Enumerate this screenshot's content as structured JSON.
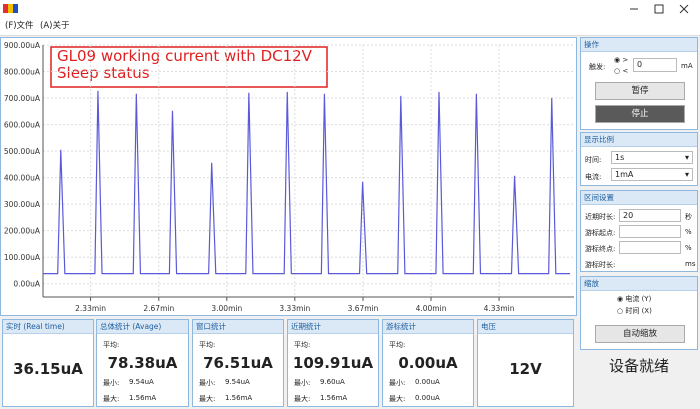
{
  "menu": [
    "(F)文件",
    "(A)关于"
  ],
  "chart_data": {
    "type": "line",
    "annotation": [
      "GL09 working current with DC12V",
      "Sleep status"
    ],
    "x": [
      2.1,
      2.172,
      2.187,
      2.207,
      2.354,
      2.369,
      2.389,
      2.542,
      2.557,
      2.577,
      2.719,
      2.734,
      2.754,
      2.911,
      2.926,
      2.946,
      3.093,
      3.108,
      3.128,
      3.281,
      3.296,
      3.316,
      3.463,
      3.478,
      3.498,
      3.65,
      3.665,
      3.685,
      3.837,
      3.852,
      3.872,
      4.024,
      4.039,
      4.059,
      4.207,
      4.222,
      4.242,
      4.394,
      4.409,
      4.429,
      4.576,
      4.591,
      4.611,
      4.68
    ],
    "series": [
      {
        "color": "#5a5ad8",
        "values": [
          38,
          38,
          505,
          38,
          38,
          727,
          38,
          38,
          716,
          38,
          38,
          652,
          38,
          38,
          456,
          38,
          38,
          720,
          38,
          38,
          723,
          38,
          38,
          716,
          38,
          38,
          384,
          38,
          38,
          708,
          38,
          38,
          723,
          38,
          38,
          716,
          38,
          38,
          407,
          38,
          38,
          700,
          38,
          38
        ]
      }
    ],
    "xlim": [
      2.1,
      4.7
    ],
    "ylim": [
      -50,
      900
    ],
    "xticks": [
      {
        "value": 2.333,
        "label": "2.33min"
      },
      {
        "value": 2.667,
        "label": "2.67min"
      },
      {
        "value": 3.0,
        "label": "3.00min"
      },
      {
        "value": 3.333,
        "label": "3.33min"
      },
      {
        "value": 3.667,
        "label": "3.67min"
      },
      {
        "value": 4.0,
        "label": "4.00min"
      },
      {
        "value": 4.333,
        "label": "4.33min"
      }
    ],
    "yticks": [
      {
        "value": 0,
        "label": "0.00uA"
      },
      {
        "value": 100,
        "label": "100.00uA"
      },
      {
        "value": 200,
        "label": "200.00uA"
      },
      {
        "value": 300,
        "label": "300.00uA"
      },
      {
        "value": 400,
        "label": "400.00uA"
      },
      {
        "value": 500,
        "label": "500.00uA"
      },
      {
        "value": 600,
        "label": "600.00uA"
      },
      {
        "value": 700,
        "label": "700.00uA"
      },
      {
        "value": 800,
        "label": "800.00uA"
      },
      {
        "value": 900,
        "label": "900.00uA"
      }
    ],
    "grid": true
  },
  "stats": [
    {
      "title": "实时 (Real time)",
      "value": "36.15uA"
    },
    {
      "title": "总体统计 (Avage)",
      "avg_label": "平均:",
      "avg": "78.38uA",
      "min_label": "最小:",
      "min": "9.54uA",
      "max_label": "最大:",
      "max": "1.56mA"
    },
    {
      "title": "窗口统计",
      "avg_label": "平均:",
      "avg": "76.51uA",
      "min_label": "最小:",
      "min": "9.54uA",
      "max_label": "最大:",
      "max": "1.56mA"
    },
    {
      "title": "近期统计",
      "avg_label": "平均:",
      "avg": "109.91uA",
      "min_label": "最小:",
      "min": "9.60uA",
      "max_label": "最大:",
      "max": "1.56mA"
    },
    {
      "title": "游标统计",
      "avg_label": "平均:",
      "avg": "0.00uA",
      "min_label": "最小:",
      "min": "0.00uA",
      "max_label": "最大:",
      "max": "0.00uA"
    },
    {
      "title": "电压",
      "value": "12V"
    }
  ],
  "panel": {
    "operate": {
      "title": "操作",
      "trigger": "触发:",
      "gt": ">",
      "lt": "<",
      "trigger_value": "0",
      "unit": "mA",
      "pause": "暂停",
      "stop": "停止"
    },
    "scale": {
      "title": "显示比例",
      "time_label": "时间:",
      "time": "1s",
      "current_label": "电流:",
      "current": "1mA"
    },
    "range": {
      "title": "区间设置",
      "recent_label": "近期时长:",
      "recent": "20",
      "recent_unit": "秒",
      "start_label": "游标起点:",
      "start_unit": "%",
      "end_label": "游标终点:",
      "end_unit": "%",
      "dur_label": "游标时长:",
      "dur_unit": "ms"
    },
    "zoom": {
      "title": "缩放",
      "y": "电流 (Y)",
      "x": "时间 (X)",
      "auto": "自动缩放"
    },
    "status": "设备就绪"
  }
}
